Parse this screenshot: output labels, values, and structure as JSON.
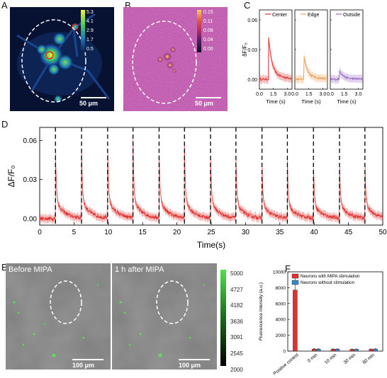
{
  "panels": {
    "a": "A",
    "b": "B",
    "c": "C",
    "d": "D",
    "e": "E",
    "f": "F"
  },
  "panel_a": {
    "colorbar": [
      "5.3",
      "4.1",
      "2.9",
      "1.7",
      "0.5"
    ],
    "scalebar": "50 μm"
  },
  "panel_b": {
    "colorbar": [
      "0.15",
      "0.11",
      "0.08",
      "0.04",
      "0.00"
    ],
    "scalebar": "50 μm"
  },
  "panel_e": {
    "label_before": "Before MIPA",
    "label_after": "1 h after MIPA",
    "scalebar": "100 μm",
    "colorbar": [
      "5000",
      "4727",
      "4182",
      "3636",
      "3091",
      "2545",
      "2000"
    ]
  },
  "chart_data": [
    {
      "type": "line",
      "panel": "C",
      "ylabel": "δF/F₀",
      "yticks": [
        "0.06",
        "0.03",
        "0.00"
      ],
      "ylim": [
        -0.01,
        0.07
      ],
      "subplots": [
        {
          "name": "Center",
          "color": "#e0312f",
          "xlabel": "Time (s)",
          "xticks": [
            "0.0",
            "1.5",
            "3.0"
          ],
          "peak": 0.036,
          "peak_time": 1.0
        },
        {
          "name": "Edge",
          "color": "#f0a050",
          "xlabel": "Time (s)",
          "xticks": [
            "0.0",
            "1.5",
            "3.0"
          ],
          "peak": 0.02,
          "peak_time": 1.0
        },
        {
          "name": "Outside",
          "color": "#9a6ac4",
          "xlabel": "Time (s)",
          "xticks": [
            "0.0",
            "1.5",
            "3.0"
          ],
          "peak": 0.008,
          "peak_time": 1.0
        }
      ]
    },
    {
      "type": "line",
      "panel": "D",
      "xlabel": "Time(s)",
      "ylabel": "ΔF/F₀",
      "xlim": [
        0,
        50
      ],
      "ylim": [
        -0.005,
        0.07
      ],
      "xticks": [
        "0",
        "5",
        "10",
        "15",
        "20",
        "25",
        "30",
        "35",
        "40",
        "45",
        "50"
      ],
      "yticks": [
        "0.06",
        "0.03",
        "0.00"
      ],
      "stimulus_times": [
        2.3,
        6.1,
        9.9,
        13.6,
        17.4,
        21.1,
        24.9,
        28.6,
        32.4,
        36.1,
        39.9,
        43.7,
        47.4
      ],
      "peaks": [
        0.058,
        0.057,
        0.06,
        0.061,
        0.06,
        0.058,
        0.055,
        0.05,
        0.046,
        0.046,
        0.045,
        0.045,
        0.047
      ],
      "color": "#e0312f"
    },
    {
      "type": "bar",
      "panel": "F",
      "ylabel": "Fluorescence Intensity (a.u.)",
      "ylim": [
        0,
        10000
      ],
      "yticks": [
        "10000",
        "8000",
        "6000",
        "4000",
        "2000",
        "0"
      ],
      "categories": [
        "Positive control",
        "0 min",
        "10 min",
        "30 min",
        "60 min"
      ],
      "series": [
        {
          "name": "Neurons with MIPA stimulation",
          "color": "#e0312f",
          "values": [
            7700,
            260,
            240,
            220,
            230
          ],
          "errors": [
            1800,
            40,
            40,
            40,
            40
          ]
        },
        {
          "name": "Neurons without stimulation",
          "color": "#3a86c8",
          "values": [
            0,
            250,
            250,
            230,
            260
          ],
          "errors": [
            0,
            40,
            40,
            40,
            40
          ]
        }
      ]
    }
  ]
}
